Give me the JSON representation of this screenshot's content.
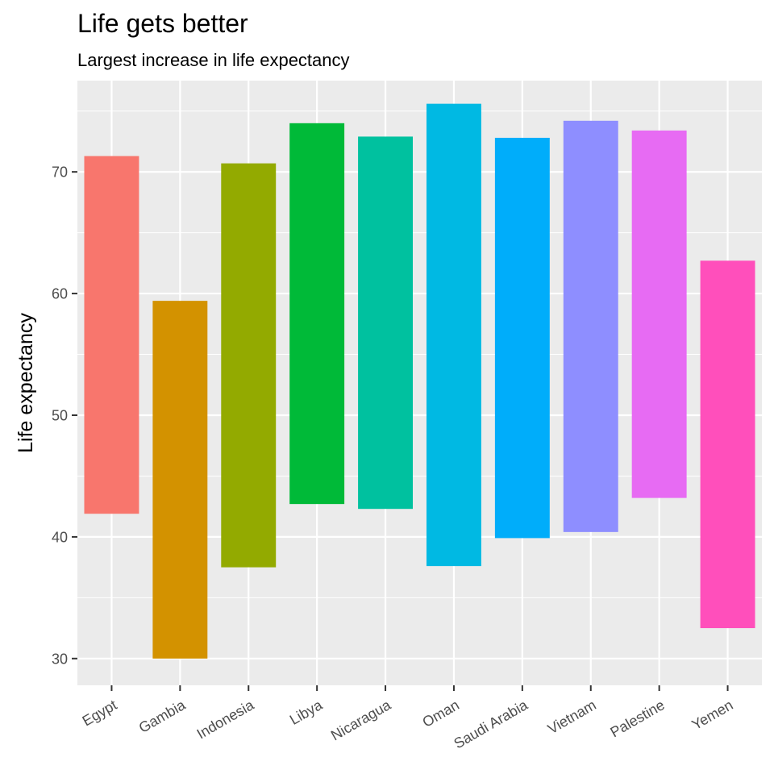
{
  "chart_data": {
    "type": "bar",
    "title": "Life gets better",
    "subtitle": "Largest increase in life expectancy",
    "xlabel": "",
    "ylabel": "Life expectancy",
    "ylim": [
      27.8,
      77.5
    ],
    "yticks": [
      30,
      40,
      50,
      60,
      70
    ],
    "grid": true,
    "legend": "none",
    "categories": [
      "Egypt",
      "Gambia",
      "Indonesia",
      "Libya",
      "Nicaragua",
      "Oman",
      "Saudi Arabia",
      "Vietnam",
      "Palestine",
      "Yemen"
    ],
    "ranges": [
      {
        "category": "Egypt",
        "low": 41.9,
        "high": 71.3,
        "color": "#F8766D"
      },
      {
        "category": "Gambia",
        "low": 30.0,
        "high": 59.4,
        "color": "#D39200"
      },
      {
        "category": "Indonesia",
        "low": 37.5,
        "high": 70.7,
        "color": "#93AA00"
      },
      {
        "category": "Libya",
        "low": 42.7,
        "high": 74.0,
        "color": "#00BA38"
      },
      {
        "category": "Nicaragua",
        "low": 42.3,
        "high": 72.9,
        "color": "#00C19F"
      },
      {
        "category": "Oman",
        "low": 37.6,
        "high": 75.6,
        "color": "#00B9E3"
      },
      {
        "category": "Saudi Arabia",
        "low": 39.9,
        "high": 72.8,
        "color": "#00ADFA"
      },
      {
        "category": "Vietnam",
        "low": 40.4,
        "high": 74.2,
        "color": "#8E8EFF"
      },
      {
        "category": "Palestine",
        "low": 43.2,
        "high": 73.4,
        "color": "#E76BF3"
      },
      {
        "category": "Yemen",
        "low": 32.5,
        "high": 62.7,
        "color": "#FF4FBB"
      }
    ]
  }
}
